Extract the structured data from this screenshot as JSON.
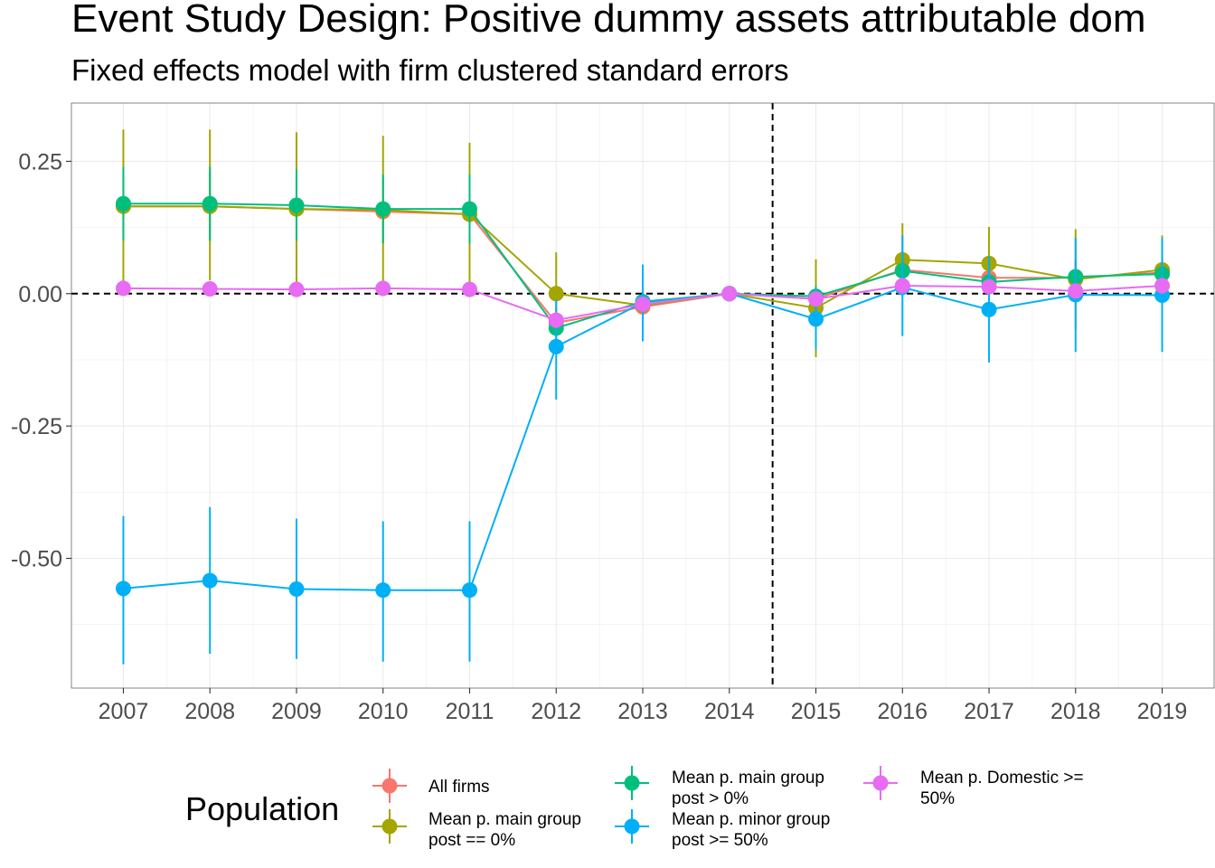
{
  "chart_data": {
    "type": "line",
    "title": "Event Study Design: Positive dummy assets attributable dom",
    "subtitle": "Fixed effects model with firm clustered standard errors",
    "xlabel": "",
    "ylabel": "",
    "x": [
      2007,
      2008,
      2009,
      2010,
      2011,
      2012,
      2013,
      2014,
      2015,
      2016,
      2017,
      2018,
      2019
    ],
    "x_ticks": [
      "2007",
      "2008",
      "2009",
      "2010",
      "2011",
      "2012",
      "2013",
      "2014",
      "2015",
      "2016",
      "2017",
      "2018",
      "2019"
    ],
    "ylim": [
      -0.745,
      0.36
    ],
    "y_ticks": [
      0.25,
      0.0,
      -0.25,
      -0.5
    ],
    "y_tick_labels": [
      "0.25",
      "0.00",
      "-0.25",
      "-0.50"
    ],
    "grid": true,
    "hline": 0,
    "vline": 2014.5,
    "legend": {
      "title": "Population",
      "placement": "bottom"
    },
    "series": [
      {
        "name": "All firms",
        "color": "#F8766D",
        "values": [
          0.165,
          0.165,
          0.16,
          0.155,
          0.15,
          -0.055,
          -0.025,
          0.0,
          -0.01,
          0.045,
          0.03,
          0.03,
          0.04
        ],
        "lower": [
          0.1,
          0.1,
          0.1,
          0.095,
          0.09,
          -0.08,
          -0.04,
          0.0,
          -0.03,
          0.01,
          0.0,
          0.0,
          0.01
        ],
        "upper": [
          0.23,
          0.23,
          0.22,
          0.215,
          0.21,
          -0.03,
          -0.01,
          0.0,
          0.01,
          0.08,
          0.06,
          0.06,
          0.07
        ]
      },
      {
        "name": "Mean p. main group post == 0%",
        "color": "#A3A500",
        "values": [
          0.165,
          0.165,
          0.16,
          0.158,
          0.15,
          0.0,
          -0.022,
          0.0,
          -0.027,
          0.064,
          0.057,
          0.027,
          0.045
        ],
        "lower": [
          0.02,
          0.025,
          0.02,
          0.018,
          0.015,
          -0.078,
          -0.05,
          0.0,
          -0.12,
          -0.005,
          -0.012,
          -0.068,
          -0.02
        ],
        "upper": [
          0.31,
          0.31,
          0.305,
          0.298,
          0.285,
          0.078,
          0.005,
          0.0,
          0.065,
          0.133,
          0.126,
          0.122,
          0.11
        ]
      },
      {
        "name": "Mean p. main group post > 0%",
        "color": "#00BF7D",
        "values": [
          0.17,
          0.17,
          0.167,
          0.16,
          0.16,
          -0.065,
          -0.015,
          0.0,
          -0.005,
          0.043,
          0.022,
          0.032,
          0.037
        ],
        "lower": [
          0.1,
          0.1,
          0.1,
          0.095,
          0.095,
          -0.095,
          -0.035,
          0.0,
          -0.025,
          0.005,
          -0.005,
          0.0,
          0.005
        ],
        "upper": [
          0.24,
          0.24,
          0.235,
          0.225,
          0.225,
          -0.035,
          0.005,
          0.0,
          0.015,
          0.08,
          0.05,
          0.065,
          0.07
        ]
      },
      {
        "name": "Mean p. minor group post >= 50%",
        "color": "#00B0F6",
        "values": [
          -0.557,
          -0.542,
          -0.558,
          -0.56,
          -0.56,
          -0.1,
          -0.017,
          0.0,
          -0.048,
          0.012,
          -0.03,
          -0.002,
          -0.003
        ],
        "lower": [
          -0.7,
          -0.68,
          -0.69,
          -0.695,
          -0.695,
          -0.2,
          -0.09,
          0.0,
          -0.105,
          -0.08,
          -0.13,
          -0.11,
          -0.11
        ],
        "upper": [
          -0.42,
          -0.403,
          -0.425,
          -0.43,
          -0.43,
          -0.012,
          0.055,
          0.0,
          0.01,
          0.11,
          0.07,
          0.105,
          0.105
        ]
      },
      {
        "name": "Mean p. Domestic >= 50%",
        "color": "#E76BF3",
        "values": [
          0.01,
          0.009,
          0.008,
          0.01,
          0.008,
          -0.05,
          -0.02,
          0.0,
          -0.01,
          0.015,
          0.013,
          0.005,
          0.015
        ],
        "lower": [
          0.0,
          0.0,
          0.0,
          0.0,
          0.0,
          -0.065,
          -0.03,
          0.0,
          -0.02,
          0.0,
          0.0,
          -0.005,
          0.0
        ],
        "upper": [
          0.02,
          0.018,
          0.016,
          0.02,
          0.016,
          -0.035,
          -0.01,
          0.0,
          0.0,
          0.03,
          0.026,
          0.015,
          0.03
        ]
      }
    ]
  },
  "legend_items": [
    {
      "line1": "All firms",
      "line2": ""
    },
    {
      "line1": "Mean p. main group",
      "line2": "post == 0%"
    },
    {
      "line1": "Mean p. main group",
      "line2": "post > 0%"
    },
    {
      "line1": "Mean p. minor group",
      "line2": "post >= 50%"
    },
    {
      "line1": "Mean p. Domestic >=",
      "line2": "50%"
    }
  ]
}
